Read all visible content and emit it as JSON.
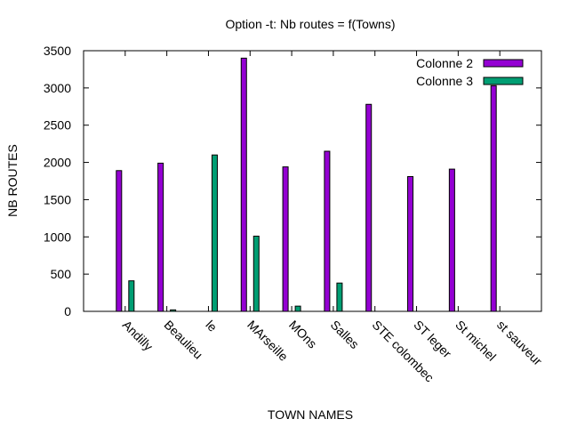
{
  "chart_data": {
    "type": "bar",
    "title": "Option -t: Nb routes = f(Towns)",
    "xlabel": "TOWN NAMES",
    "ylabel": "NB ROUTES",
    "ylim": [
      0,
      3500
    ],
    "yticks": [
      0,
      500,
      1000,
      1500,
      2000,
      2500,
      3000,
      3500
    ],
    "grid": false,
    "legend_position": "top-right",
    "categories": [
      "Andilly",
      "Beaulieu",
      "le",
      "MArseille",
      "MOns",
      "Salles",
      "STE colombec",
      "ST leger",
      "St michel",
      "st sauveur"
    ],
    "series": [
      {
        "name": "Colonne 2",
        "color": "#9400d3",
        "values": [
          1890,
          1990,
          0,
          3400,
          1940,
          2150,
          2780,
          1810,
          1910,
          3030
        ]
      },
      {
        "name": "Colonne 3",
        "color": "#009e73",
        "values": [
          410,
          20,
          2100,
          1010,
          70,
          380,
          0,
          0,
          0,
          0
        ]
      }
    ]
  }
}
